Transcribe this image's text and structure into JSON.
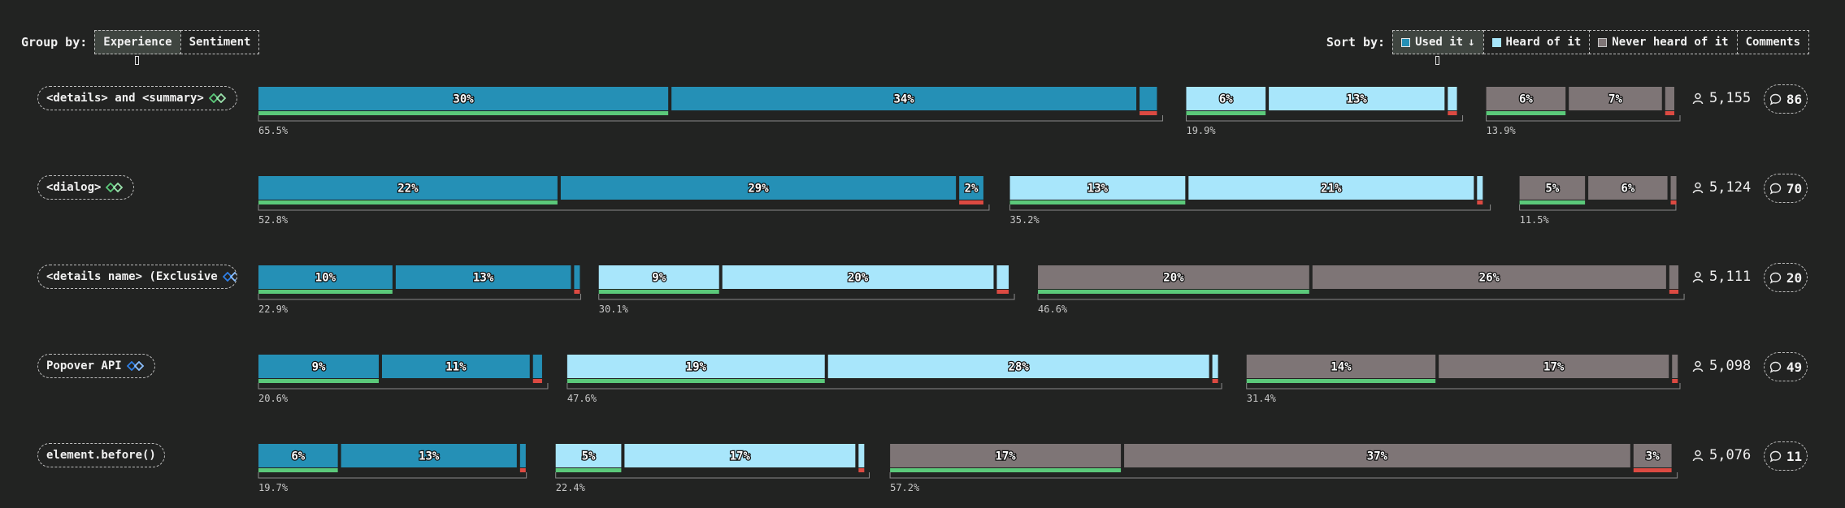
{
  "group_by": {
    "label": "Group by:",
    "options": [
      {
        "label": "Experience",
        "active": true
      },
      {
        "label": "Sentiment",
        "active": false
      }
    ]
  },
  "sort_by": {
    "label": "Sort by:",
    "options": [
      {
        "label": "Used it",
        "arrow": "↓",
        "swatch": "used",
        "active": true
      },
      {
        "label": "Heard of it",
        "swatch": "heard",
        "active": false
      },
      {
        "label": "Never heard of it",
        "swatch": "never",
        "active": false
      },
      {
        "label": "Comments",
        "active": false
      }
    ]
  },
  "colors": {
    "used": "#2590b6",
    "heard": "#a8e6fb",
    "never": "#7e7576",
    "positive": "#5bc97a",
    "negative": "#dc4a42",
    "bracket": "#8a8a8a",
    "total_text": "#c6c6c6"
  },
  "chart_data": {
    "type": "bar",
    "orientation": "horizontal",
    "stacked": true,
    "groups": [
      "Used it",
      "Heard of it",
      "Never heard of it"
    ],
    "rows": [
      {
        "feature": "<details> and <summary>",
        "icon": "baseline-widely-available-icon",
        "users": "5,155",
        "comments": "86",
        "groups": [
          {
            "name": "Used it",
            "total": 65.5,
            "total_label": "65.5%",
            "segments": [
              {
                "value": 30,
                "label": "30%",
                "sentiment": "positive"
              },
              {
                "value": 34,
                "label": "34%",
                "sentiment": "neutral"
              },
              {
                "value": 1.5,
                "label": "",
                "sentiment": "negative"
              }
            ]
          },
          {
            "name": "Heard of it",
            "total": 19.9,
            "total_label": "19.9%",
            "segments": [
              {
                "value": 6,
                "label": "6%",
                "sentiment": "positive"
              },
              {
                "value": 13,
                "label": "13%",
                "sentiment": "neutral"
              },
              {
                "value": 0.9,
                "label": "",
                "sentiment": "negative"
              }
            ]
          },
          {
            "name": "Never heard of it",
            "total": 13.9,
            "total_label": "13.9%",
            "segments": [
              {
                "value": 6,
                "label": "6%",
                "sentiment": "positive"
              },
              {
                "value": 7,
                "label": "7%",
                "sentiment": "neutral"
              },
              {
                "value": 0.9,
                "label": "",
                "sentiment": "negative"
              }
            ]
          }
        ]
      },
      {
        "feature": "<dialog>",
        "icon": "baseline-widely-available-icon",
        "users": "5,124",
        "comments": "70",
        "groups": [
          {
            "name": "Used it",
            "total": 52.8,
            "total_label": "52.8%",
            "segments": [
              {
                "value": 22,
                "label": "22%",
                "sentiment": "positive"
              },
              {
                "value": 29,
                "label": "29%",
                "sentiment": "neutral"
              },
              {
                "value": 2,
                "label": "2%",
                "sentiment": "negative"
              }
            ]
          },
          {
            "name": "Heard of it",
            "total": 35.2,
            "total_label": "35.2%",
            "segments": [
              {
                "value": 13,
                "label": "13%",
                "sentiment": "positive"
              },
              {
                "value": 21,
                "label": "21%",
                "sentiment": "neutral"
              },
              {
                "value": 0.6,
                "label": "",
                "sentiment": "negative"
              }
            ]
          },
          {
            "name": "Never heard of it",
            "total": 11.5,
            "total_label": "11.5%",
            "segments": [
              {
                "value": 5,
                "label": "5%",
                "sentiment": "positive"
              },
              {
                "value": 6,
                "label": "6%",
                "sentiment": "neutral"
              },
              {
                "value": 0.2,
                "label": "",
                "sentiment": "negative"
              }
            ]
          }
        ]
      },
      {
        "feature": "<details name> (Exclusive",
        "icon": "baseline-newly-available-icon",
        "users": "5,111",
        "comments": "20",
        "groups": [
          {
            "name": "Used it",
            "total": 22.9,
            "total_label": "22.9%",
            "segments": [
              {
                "value": 10,
                "label": "10%",
                "sentiment": "positive"
              },
              {
                "value": 13,
                "label": "13%",
                "sentiment": "neutral"
              },
              {
                "value": 0.3,
                "label": "",
                "sentiment": "negative"
              }
            ]
          },
          {
            "name": "Heard of it",
            "total": 30.1,
            "total_label": "30.1%",
            "segments": [
              {
                "value": 9,
                "label": "9%",
                "sentiment": "positive"
              },
              {
                "value": 20,
                "label": "20%",
                "sentiment": "neutral"
              },
              {
                "value": 1.1,
                "label": "",
                "sentiment": "negative"
              }
            ]
          },
          {
            "name": "Never heard of it",
            "total": 46.6,
            "total_label": "46.6%",
            "segments": [
              {
                "value": 20,
                "label": "20%",
                "sentiment": "positive"
              },
              {
                "value": 26,
                "label": "26%",
                "sentiment": "neutral"
              },
              {
                "value": 0.9,
                "label": "",
                "sentiment": "negative"
              }
            ]
          }
        ]
      },
      {
        "feature": "Popover API",
        "icon": "baseline-newly-available-icon",
        "users": "5,098",
        "comments": "49",
        "groups": [
          {
            "name": "Used it",
            "total": 20.6,
            "total_label": "20.6%",
            "segments": [
              {
                "value": 9,
                "label": "9%",
                "sentiment": "positive"
              },
              {
                "value": 11,
                "label": "11%",
                "sentiment": "neutral"
              },
              {
                "value": 0.9,
                "label": "",
                "sentiment": "negative"
              }
            ]
          },
          {
            "name": "Heard of it",
            "total": 47.6,
            "total_label": "47.6%",
            "segments": [
              {
                "value": 19,
                "label": "19%",
                "sentiment": "positive"
              },
              {
                "value": 28,
                "label": "28%",
                "sentiment": "neutral"
              },
              {
                "value": 0.5,
                "label": "",
                "sentiment": "negative"
              }
            ]
          },
          {
            "name": "Never heard of it",
            "total": 31.4,
            "total_label": "31.4%",
            "segments": [
              {
                "value": 14,
                "label": "14%",
                "sentiment": "positive"
              },
              {
                "value": 17,
                "label": "17%",
                "sentiment": "neutral"
              },
              {
                "value": 0.4,
                "label": "",
                "sentiment": "negative"
              }
            ]
          }
        ]
      },
      {
        "feature": "element.before()",
        "icon": "",
        "users": "5,076",
        "comments": "11",
        "groups": [
          {
            "name": "Used it",
            "total": 19.7,
            "total_label": "19.7%",
            "segments": [
              {
                "value": 6,
                "label": "6%",
                "sentiment": "positive"
              },
              {
                "value": 13,
                "label": "13%",
                "sentiment": "neutral"
              },
              {
                "value": 0.2,
                "label": "",
                "sentiment": "negative"
              }
            ]
          },
          {
            "name": "Heard of it",
            "total": 22.4,
            "total_label": "22.4%",
            "segments": [
              {
                "value": 5,
                "label": "5%",
                "sentiment": "positive"
              },
              {
                "value": 17,
                "label": "17%",
                "sentiment": "neutral"
              },
              {
                "value": 0.6,
                "label": "",
                "sentiment": "negative"
              }
            ]
          },
          {
            "name": "Never heard of it",
            "total": 57.2,
            "total_label": "57.2%",
            "segments": [
              {
                "value": 17,
                "label": "17%",
                "sentiment": "positive"
              },
              {
                "value": 37,
                "label": "37%",
                "sentiment": "neutral"
              },
              {
                "value": 3,
                "label": "3%",
                "sentiment": "negative"
              }
            ]
          }
        ]
      }
    ]
  }
}
